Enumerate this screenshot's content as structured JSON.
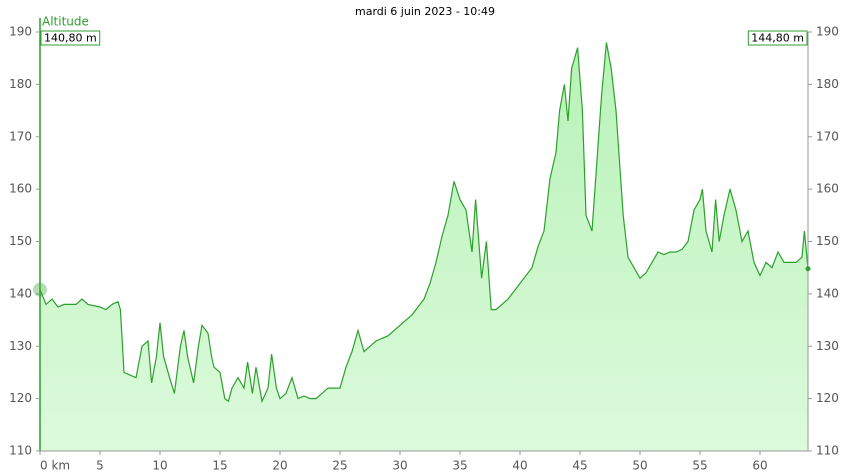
{
  "chart_data": {
    "type": "area",
    "title": "mardi 6 juin 2023 - 10:49",
    "y_label": "Altitude",
    "color": "#2ca02c",
    "fill": "#c4f5c4",
    "annotations": [
      {
        "value": 140.8,
        "label": "140,80 m",
        "side": "left"
      },
      {
        "value": 144.8,
        "label": "144,80 m",
        "side": "right"
      }
    ],
    "xlim": [
      0,
      64
    ],
    "xticks": [
      {
        "value": 0,
        "label": "0 km"
      },
      5,
      10,
      15,
      20,
      25,
      30,
      35,
      40,
      45,
      50,
      55,
      60
    ],
    "ylim": [
      110,
      190
    ],
    "yticks": [
      110,
      120,
      130,
      140,
      150,
      160,
      170,
      180,
      190
    ],
    "y2lim": [
      110,
      190
    ],
    "y2ticks": [
      110,
      120,
      130,
      140,
      150,
      160,
      170,
      180,
      190
    ],
    "x": [
      0,
      0.5,
      1,
      1.5,
      2,
      3,
      3.5,
      4,
      5,
      5.5,
      6,
      6.5,
      6.7,
      7,
      7.5,
      8,
      8.5,
      9,
      9.3,
      9.7,
      10,
      10.3,
      10.8,
      11.2,
      11.7,
      12,
      12.3,
      12.8,
      13.2,
      13.5,
      14,
      14.3,
      14.5,
      15,
      15.4,
      15.7,
      16,
      16.5,
      17,
      17.3,
      17.7,
      18,
      18.5,
      19,
      19.3,
      19.7,
      20,
      20.5,
      21,
      21.5,
      22,
      22.5,
      23,
      24,
      25,
      25.5,
      26,
      26.5,
      27,
      27.5,
      28,
      29,
      30,
      31,
      32,
      32.5,
      33,
      33.5,
      34,
      34.5,
      35,
      35.5,
      36,
      36.3,
      36.8,
      37.2,
      37.6,
      38,
      39,
      40,
      41,
      41.5,
      42,
      42.5,
      43,
      43.3,
      43.7,
      44,
      44.3,
      44.8,
      45.2,
      45.5,
      46,
      46.4,
      46.8,
      47.2,
      47.6,
      48,
      48.3,
      48.6,
      49,
      49.5,
      50,
      50.5,
      51,
      51.5,
      52,
      52.5,
      53,
      53.5,
      54,
      54.5,
      55,
      55.2,
      55.5,
      56,
      56.3,
      56.6,
      57,
      57.5,
      58,
      58.5,
      59,
      59.5,
      60,
      60.5,
      61,
      61.5,
      62,
      62.5,
      63,
      63.5,
      63.7,
      64
    ],
    "values": [
      140.8,
      138,
      139,
      137.5,
      138,
      138,
      139,
      138,
      137.5,
      137,
      138,
      138.5,
      137,
      125,
      124.5,
      124,
      130,
      131,
      123,
      128,
      134.5,
      128,
      124,
      121,
      130,
      133,
      128,
      123,
      130,
      134,
      132.5,
      128,
      126,
      125,
      120,
      119.5,
      122,
      124,
      122,
      127,
      121,
      126,
      119.5,
      122,
      128.5,
      122,
      120,
      121,
      124,
      120,
      120.5,
      120,
      120,
      122,
      122,
      126,
      129,
      133,
      129,
      130,
      131,
      132,
      134,
      136,
      139,
      142,
      146,
      151,
      155,
      161.5,
      158,
      156,
      148,
      158,
      143,
      150,
      137,
      137,
      139,
      142,
      145,
      149,
      152,
      162,
      167,
      175,
      180,
      173,
      183,
      187,
      175,
      155,
      152,
      165,
      178,
      188,
      183,
      175,
      165,
      155,
      147,
      145,
      143,
      144,
      146,
      148,
      147.5,
      148,
      148,
      148.5,
      150,
      156,
      158,
      160,
      152,
      148,
      158,
      150,
      155,
      160,
      156,
      150,
      152,
      146,
      143.5,
      146,
      145,
      148,
      146,
      146,
      146,
      147,
      152,
      144.8
    ]
  }
}
